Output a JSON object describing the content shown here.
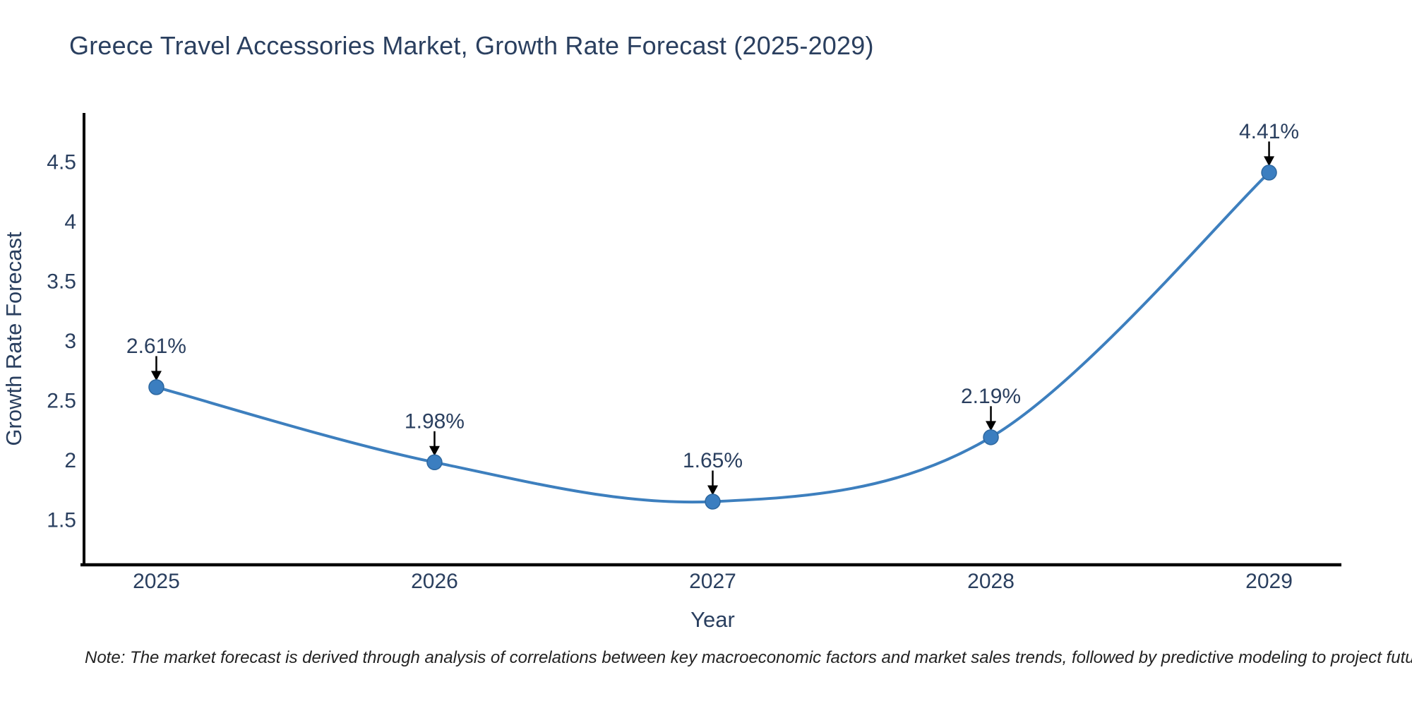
{
  "page": {
    "title": "Greece Travel Accessories Market, Growth Rate Forecast (2025-2029)",
    "note": "Note: The market forecast is derived through analysis of correlations between key macroeconomic factors and market sales trends, followed by predictive modeling to project future sales"
  },
  "chart_data": {
    "type": "line",
    "title": "Greece Travel Accessories Market, Growth Rate Forecast (2025-2029)",
    "xlabel": "Year",
    "ylabel": "Growth Rate Forecast",
    "x": [
      2025,
      2026,
      2027,
      2028,
      2029
    ],
    "series": [
      {
        "name": "Growth Rate Forecast",
        "values": [
          2.61,
          1.98,
          1.65,
          2.19,
          4.41
        ],
        "point_labels": [
          "2.61%",
          "1.98%",
          "1.65%",
          "2.19%",
          "4.41%"
        ]
      }
    ],
    "line_shape": "spline",
    "markers": true,
    "grid": false,
    "legend": "none",
    "yticks": [
      1.5,
      2,
      2.5,
      3,
      3.5,
      4,
      4.5
    ],
    "ylim": [
      1.12,
      4.91
    ],
    "xlim": [
      2024.74,
      2029.26
    ],
    "annotations": "value labels with black down arrows above each point",
    "colors": {
      "line": "#3d7fbe",
      "marker": "#3b7ec0",
      "marker_edge": "#2d679f",
      "axis": "#000000",
      "text": "#2a3f5f",
      "arrow": "#000000",
      "note_text": "#222222",
      "background": "#ffffff"
    }
  }
}
